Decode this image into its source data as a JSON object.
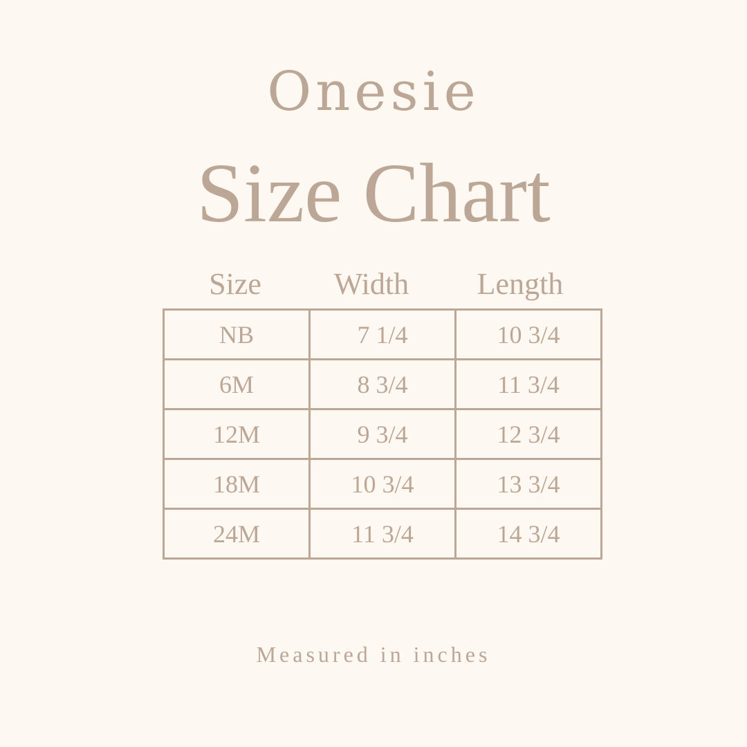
{
  "title_line1": "Onesie",
  "title_line2": "Size Chart",
  "columns": [
    "Size",
    "Width",
    "Length"
  ],
  "rows": [
    [
      "NB",
      "7 1/4",
      "10 3/4"
    ],
    [
      "6M",
      "8 3/4",
      "11 3/4"
    ],
    [
      "12M",
      "9 3/4",
      "12 3/4"
    ],
    [
      "18M",
      "10 3/4",
      "13 3/4"
    ],
    [
      "24M",
      "11 3/4",
      "14 3/4"
    ]
  ],
  "footer": "Measured in inches",
  "colors": {
    "background": "#fdf8f1",
    "text": "#bca797"
  }
}
